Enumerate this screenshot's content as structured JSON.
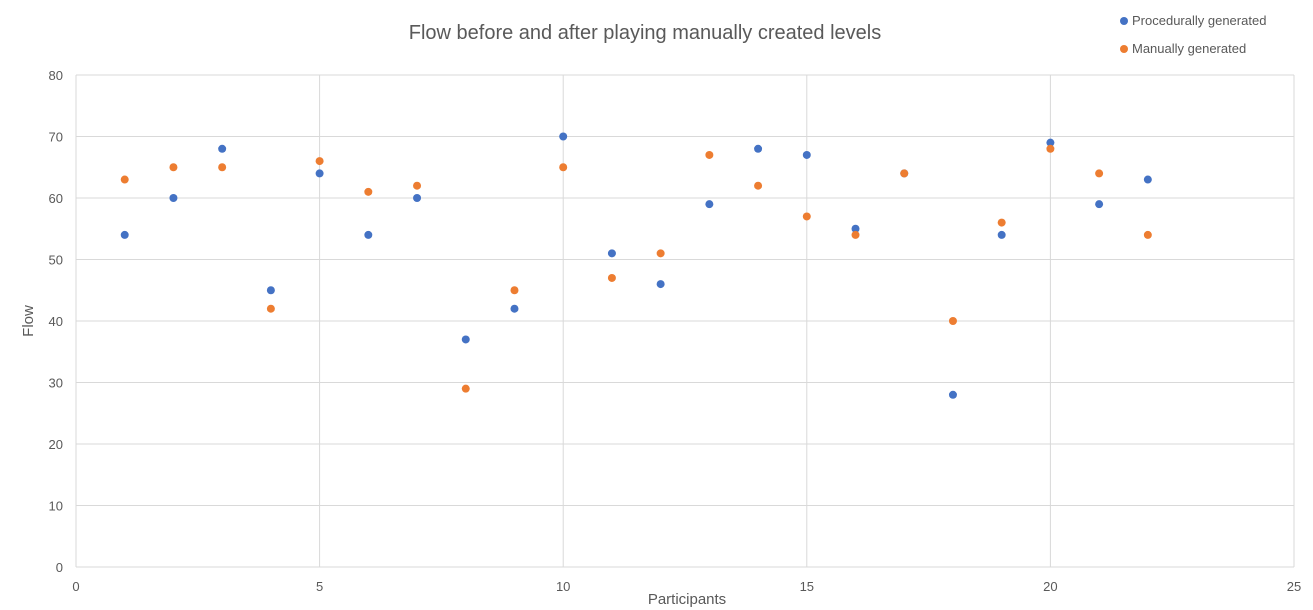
{
  "chart_data": {
    "type": "scatter",
    "title": "Flow before and after playing manually created levels",
    "xlabel": "Participants",
    "ylabel": "Flow",
    "xlim": [
      0,
      25
    ],
    "ylim": [
      0,
      80
    ],
    "xticks": [
      0,
      5,
      10,
      15,
      20,
      25
    ],
    "yticks": [
      0,
      10,
      20,
      30,
      40,
      50,
      60,
      70,
      80
    ],
    "grid": true,
    "legend_position": "top-right",
    "series": [
      {
        "name": "Procedurally generated",
        "color": "#4472c4",
        "x": [
          1,
          2,
          3,
          4,
          5,
          6,
          7,
          8,
          9,
          10,
          11,
          12,
          13,
          14,
          15,
          16,
          17,
          18,
          19,
          20,
          21,
          22
        ],
        "y": [
          54,
          60,
          68,
          45,
          64,
          54,
          60,
          37,
          42,
          70,
          51,
          46,
          59,
          68,
          67,
          55,
          64,
          28,
          54,
          69,
          59,
          63
        ]
      },
      {
        "name": "Manually generated",
        "color": "#ed7d31",
        "x": [
          1,
          2,
          3,
          4,
          5,
          6,
          7,
          8,
          9,
          10,
          11,
          12,
          13,
          14,
          15,
          16,
          17,
          18,
          19,
          20,
          21,
          22
        ],
        "y": [
          63,
          65,
          65,
          42,
          66,
          61,
          62,
          29,
          45,
          65,
          47,
          51,
          67,
          62,
          57,
          54,
          64,
          40,
          56,
          68,
          64,
          54
        ]
      }
    ]
  }
}
